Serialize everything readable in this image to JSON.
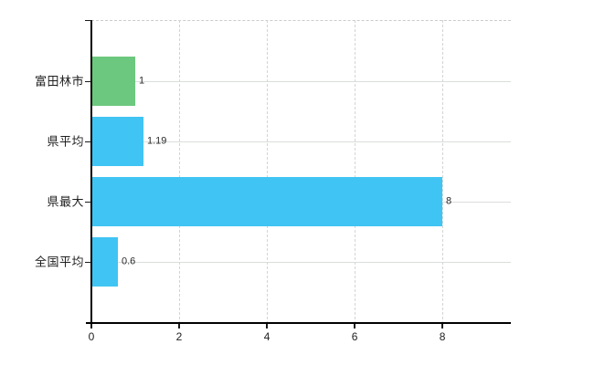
{
  "chart_data": {
    "type": "bar",
    "orientation": "horizontal",
    "title": "",
    "xlabel": "",
    "ylabel": "",
    "categories": [
      "富田林市",
      "県平均",
      "県最大",
      "全国平均"
    ],
    "values": [
      1,
      1.19,
      8,
      0.6
    ],
    "value_labels": [
      "1",
      "1.19",
      "8",
      "0.6"
    ],
    "bar_colors": [
      "#6cc87e",
      "#40c4f3",
      "#40c4f3",
      "#40c4f3"
    ],
    "x_ticks": [
      0,
      2,
      4,
      6,
      8
    ],
    "x_tick_labels": [
      "0",
      "2",
      "4",
      "6",
      "8"
    ],
    "xlim": [
      0,
      9.56
    ],
    "grid": true,
    "legend": false,
    "colors": {
      "highlight_bar": "#6cc87e",
      "default_bar": "#40c4f3",
      "axis": "#000000",
      "gridline": "#d9d9d9",
      "text": "#1f1f1f",
      "background": "#ffffff"
    }
  }
}
